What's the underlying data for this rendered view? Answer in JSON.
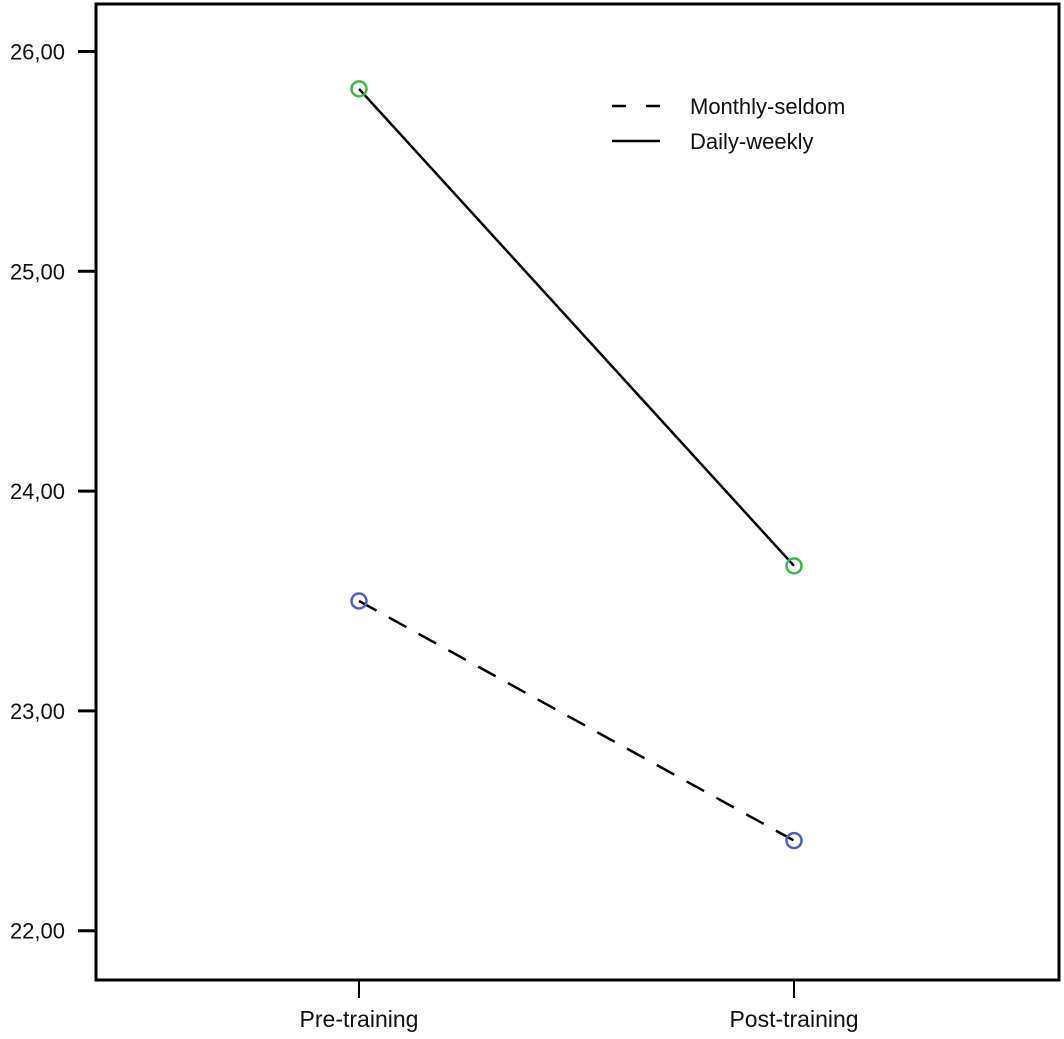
{
  "chart_data": {
    "type": "line",
    "title": "",
    "xlabel": "",
    "ylabel": "",
    "categories": [
      "Pre-training",
      "Post-training"
    ],
    "ylim": [
      21.8,
      26.22
    ],
    "yticks": [
      22,
      23,
      24,
      25,
      26
    ],
    "ytick_labels": [
      "22,00",
      "23,00",
      "24,00",
      "25,00",
      "26,00"
    ],
    "grid": false,
    "legend_position": "top-right",
    "series": [
      {
        "name": "Monthly-seldom",
        "values": [
          23.5,
          22.41
        ],
        "line_style": "dashed",
        "marker_color": "#4a5fc8"
      },
      {
        "name": "Daily-weekly",
        "values": [
          25.83,
          23.66
        ],
        "line_style": "solid",
        "marker_color": "#3cb84a"
      }
    ]
  }
}
